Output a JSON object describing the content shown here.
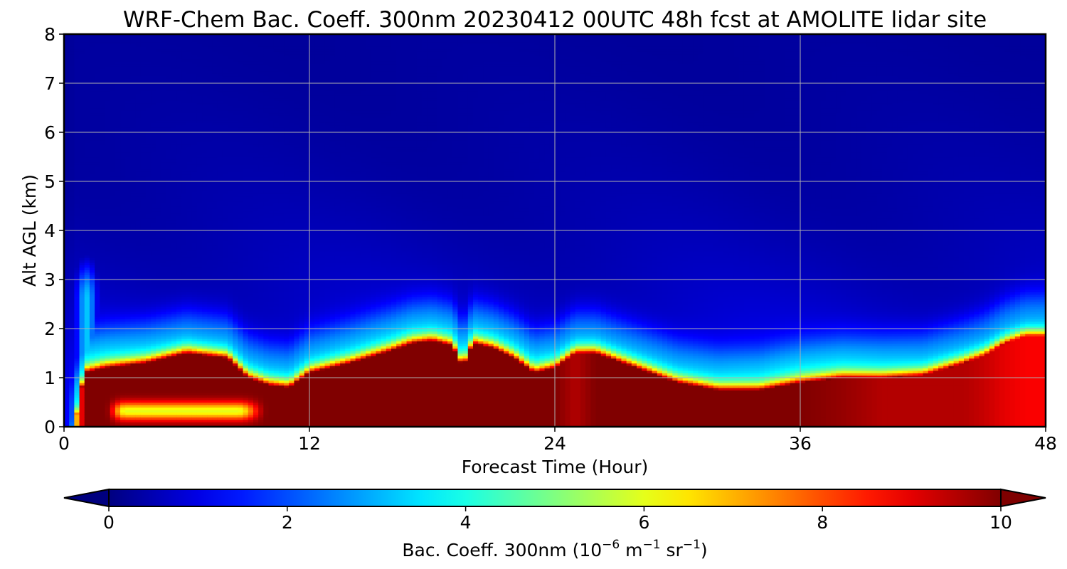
{
  "chart_data": {
    "type": "heatmap",
    "title": "WRF-Chem Bac. Coeff. 300nm  20230412 00UTC 48h fcst at AMOLITE lidar site",
    "xlabel": "Forecast Time (Hour)",
    "ylabel": "Alt AGL (km)",
    "xlim": [
      0,
      48
    ],
    "ylim": [
      0,
      8
    ],
    "xticks": [
      0,
      12,
      24,
      36,
      48
    ],
    "yticks": [
      0,
      1,
      2,
      3,
      4,
      5,
      6,
      7,
      8
    ],
    "grid": true,
    "colormap": "jet",
    "colorbar": {
      "label_main": "Bac. Coeff. 300nm  (10",
      "label_exp1": "−6",
      "label_unit_m": " m",
      "label_exp2": "−1",
      "label_unit_sr": " sr",
      "label_exp3": "−1",
      "label_close": ")",
      "range": [
        0,
        10
      ],
      "ticks": [
        0,
        2,
        4,
        6,
        8,
        10
      ],
      "extend": "both",
      "placement": "bottom"
    },
    "times_hour": [
      0,
      0.5,
      1,
      2,
      4,
      6,
      8,
      9,
      10,
      11,
      12,
      14,
      16,
      17,
      18,
      19,
      19.5,
      20,
      21,
      22,
      23,
      24,
      25,
      26,
      28,
      30,
      32,
      34,
      36,
      38,
      40,
      42,
      44,
      45,
      46,
      47,
      48
    ],
    "aerosol_layer_top_km": [
      0.1,
      0.3,
      1.4,
      1.5,
      1.6,
      1.8,
      1.7,
      1.3,
      1.15,
      1.1,
      1.4,
      1.6,
      1.85,
      2.0,
      2.05,
      1.95,
      1.5,
      2.0,
      1.9,
      1.7,
      1.4,
      1.5,
      1.8,
      1.8,
      1.5,
      1.2,
      1.05,
      1.05,
      1.2,
      1.3,
      1.3,
      1.35,
      1.6,
      1.75,
      2.0,
      2.15,
      2.15
    ],
    "aerosol_layer_peak_coeff": [
      2,
      6,
      10,
      10,
      10,
      10,
      10,
      10,
      10,
      10,
      10,
      10,
      10,
      10,
      10,
      10,
      10,
      10,
      10,
      10,
      10,
      10,
      9.5,
      10,
      10,
      10,
      10,
      10,
      10,
      9.8,
      9.5,
      9.5,
      9.5,
      9.3,
      9.0,
      8.8,
      8.8
    ],
    "features": [
      {
        "t_start": 2,
        "t_end": 10,
        "z_center_km": 0.33,
        "z_width_km": 0.18,
        "coeff": 6.0
      },
      {
        "t_start": 0.5,
        "t_end": 2,
        "z_top_km": 3.8,
        "coeff": 3.2
      }
    ]
  }
}
